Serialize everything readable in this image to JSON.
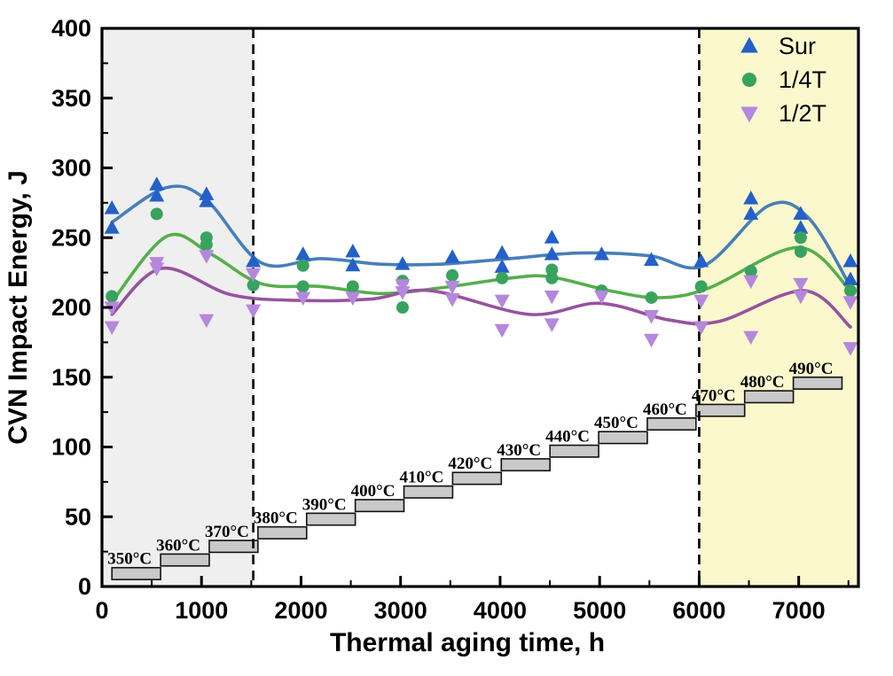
{
  "chart_data": {
    "type": "scatter",
    "title": "",
    "xlabel": "Thermal aging time, h",
    "ylabel": "CVN Impact Energy, J",
    "xlim": [
      0,
      7600
    ],
    "ylim": [
      0,
      400
    ],
    "x_major_ticks": [
      0,
      1000,
      2000,
      3000,
      4000,
      5000,
      6000,
      7000
    ],
    "x_minor_step": 500,
    "y_major_ticks": [
      0,
      50,
      100,
      150,
      200,
      250,
      300,
      350,
      400
    ],
    "y_minor_step": 25,
    "grid": false,
    "legend_position": "top-right-inside",
    "regions": [
      {
        "name": "early-aging-band",
        "x0": 0,
        "x1": 1520,
        "color": "#efefef"
      },
      {
        "name": "late-aging-band",
        "x0": 6000,
        "x1": 7600,
        "color": "#fbf8cd"
      }
    ],
    "dashed_boundaries_x": [
      1520,
      6000
    ],
    "legend": [
      {
        "label": "Sur",
        "marker": "triangle-up",
        "color": "#2361c8"
      },
      {
        "label": "1/4T",
        "marker": "circle",
        "color": "#37a35e"
      },
      {
        "label": "1/2T",
        "marker": "triangle-down",
        "color": "#b587dd"
      }
    ],
    "series": [
      {
        "name": "Sur",
        "marker": "triangle-up",
        "marker_color": "#2361c8",
        "line_color": "#477fb8",
        "points": [
          [
            100,
            271
          ],
          [
            100,
            257
          ],
          [
            550,
            288
          ],
          [
            550,
            280
          ],
          [
            1050,
            281
          ],
          [
            1050,
            276
          ],
          [
            1520,
            233
          ],
          [
            2020,
            238
          ],
          [
            2520,
            240
          ],
          [
            2520,
            230
          ],
          [
            3020,
            231
          ],
          [
            3520,
            236
          ],
          [
            4020,
            239
          ],
          [
            4020,
            229
          ],
          [
            4520,
            250
          ],
          [
            4520,
            238
          ],
          [
            5020,
            238
          ],
          [
            5520,
            234
          ],
          [
            6020,
            233
          ],
          [
            6520,
            278
          ],
          [
            6520,
            267
          ],
          [
            7020,
            267
          ],
          [
            7020,
            257
          ],
          [
            7520,
            233
          ],
          [
            7520,
            220
          ]
        ],
        "fit": [
          [
            100,
            261
          ],
          [
            650,
            286
          ],
          [
            1050,
            277
          ],
          [
            1600,
            232
          ],
          [
            2200,
            235
          ],
          [
            2800,
            231
          ],
          [
            3400,
            231
          ],
          [
            4100,
            235
          ],
          [
            4800,
            239
          ],
          [
            5500,
            237
          ],
          [
            6050,
            230
          ],
          [
            6700,
            273
          ],
          [
            7100,
            264
          ],
          [
            7520,
            215
          ]
        ]
      },
      {
        "name": "1/4T",
        "marker": "circle",
        "marker_color": "#37a35e",
        "line_color": "#56ae4b",
        "points": [
          [
            100,
            208
          ],
          [
            550,
            267
          ],
          [
            1050,
            250
          ],
          [
            1050,
            245
          ],
          [
            1520,
            216
          ],
          [
            2020,
            230
          ],
          [
            2020,
            215
          ],
          [
            2520,
            215
          ],
          [
            3020,
            219
          ],
          [
            3020,
            200
          ],
          [
            3520,
            223
          ],
          [
            4020,
            221
          ],
          [
            4520,
            227
          ],
          [
            4520,
            221
          ],
          [
            5020,
            212
          ],
          [
            5520,
            207
          ],
          [
            6020,
            215
          ],
          [
            6520,
            226
          ],
          [
            7020,
            250
          ],
          [
            7020,
            240
          ],
          [
            7520,
            212
          ]
        ],
        "fit": [
          [
            100,
            204
          ],
          [
            650,
            251
          ],
          [
            1100,
            238
          ],
          [
            1600,
            217
          ],
          [
            2200,
            215
          ],
          [
            2800,
            210
          ],
          [
            3400,
            214
          ],
          [
            4100,
            221
          ],
          [
            4500,
            222
          ],
          [
            5100,
            212
          ],
          [
            5600,
            207
          ],
          [
            6100,
            214
          ],
          [
            7000,
            243
          ],
          [
            7520,
            212
          ]
        ]
      },
      {
        "name": "1/2T",
        "marker": "triangle-down",
        "marker_color": "#b587dd",
        "line_color": "#97529f",
        "points": [
          [
            100,
            200
          ],
          [
            100,
            186
          ],
          [
            550,
            232
          ],
          [
            550,
            228
          ],
          [
            1050,
            237
          ],
          [
            1050,
            191
          ],
          [
            1520,
            224
          ],
          [
            1520,
            198
          ],
          [
            2020,
            207
          ],
          [
            2520,
            207
          ],
          [
            3020,
            216
          ],
          [
            3020,
            211
          ],
          [
            3520,
            215
          ],
          [
            3520,
            206
          ],
          [
            4020,
            205
          ],
          [
            4020,
            184
          ],
          [
            4520,
            208
          ],
          [
            4520,
            188
          ],
          [
            5020,
            208
          ],
          [
            5520,
            194
          ],
          [
            5520,
            177
          ],
          [
            6020,
            205
          ],
          [
            6020,
            186
          ],
          [
            6520,
            219
          ],
          [
            6520,
            179
          ],
          [
            7020,
            217
          ],
          [
            7020,
            208
          ],
          [
            7520,
            204
          ],
          [
            7520,
            171
          ]
        ],
        "fit": [
          [
            100,
            195
          ],
          [
            600,
            228
          ],
          [
            1300,
            209
          ],
          [
            2000,
            205
          ],
          [
            2700,
            206
          ],
          [
            3300,
            212
          ],
          [
            4300,
            195
          ],
          [
            5000,
            203
          ],
          [
            5700,
            191
          ],
          [
            6200,
            190
          ],
          [
            7050,
            212
          ],
          [
            7520,
            186
          ]
        ]
      }
    ],
    "staircase": {
      "labels": [
        "350°C",
        "360°C",
        "370°C",
        "380°C",
        "390°C",
        "400°C",
        "410°C",
        "420°C",
        "430°C",
        "440°C",
        "450°C",
        "460°C",
        "470°C",
        "480°C",
        "490°C"
      ],
      "x_start_h": 100,
      "step_width_h": 489,
      "bottom_start_j": 5,
      "rise_per_step_j": 9.75,
      "bar_height_j": 8.5,
      "fill": "#c9c9c9",
      "border": "#111111"
    }
  }
}
